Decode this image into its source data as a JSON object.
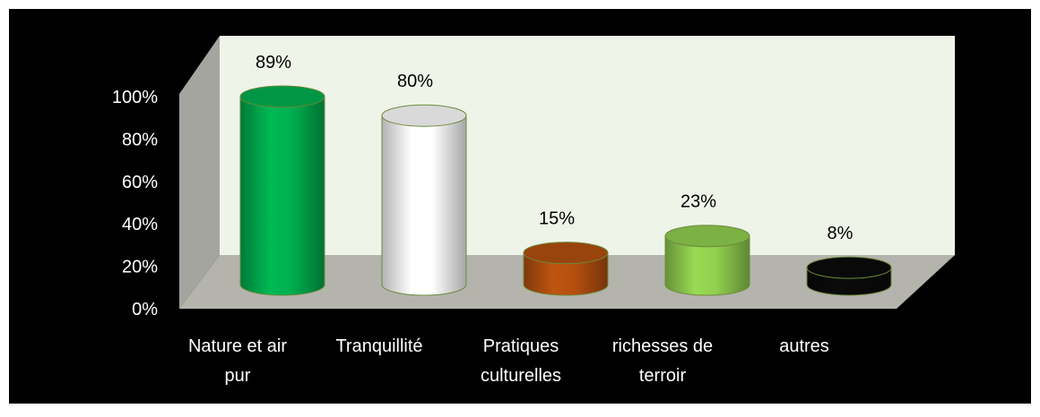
{
  "chart_data": {
    "type": "cylinder",
    "categories": [
      "Nature et air pur",
      "Tranquillité",
      "Pratiques culturelles",
      "richesses de terroir",
      "autres"
    ],
    "values": [
      89,
      80,
      15,
      23,
      8
    ],
    "value_labels": [
      "89%",
      "80%",
      "15%",
      "23%",
      "8%"
    ],
    "colors": [
      "#00b050",
      "#ffffff",
      "#b5500f",
      "#92d050",
      "#0a0a0a"
    ],
    "ylim": [
      0,
      100
    ],
    "yticks": [
      {
        "value": 0,
        "label": "0%"
      },
      {
        "value": 20,
        "label": "20%"
      },
      {
        "value": 40,
        "label": "40%"
      },
      {
        "value": 60,
        "label": "60%"
      },
      {
        "value": 80,
        "label": "80%"
      },
      {
        "value": 100,
        "label": "100%"
      }
    ]
  }
}
